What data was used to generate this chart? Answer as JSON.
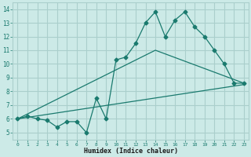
{
  "xlabel": "Humidex (Indice chaleur)",
  "bg_color": "#cceae7",
  "grid_color": "#aacfcc",
  "line_color": "#1a7a6e",
  "line1_x": [
    0,
    1,
    2,
    3,
    4,
    5,
    6,
    7,
    8,
    9,
    10,
    11,
    12,
    13,
    14,
    15,
    16,
    17,
    18,
    19,
    20,
    21,
    22,
    23
  ],
  "line1_y": [
    6.0,
    6.2,
    6.0,
    5.9,
    5.4,
    5.8,
    5.8,
    5.0,
    7.5,
    6.0,
    10.3,
    10.5,
    11.5,
    13.0,
    13.8,
    12.0,
    13.2,
    13.8,
    12.7,
    12.0,
    11.0,
    10.0,
    8.6,
    8.6
  ],
  "line2_x": [
    0,
    23
  ],
  "line2_y": [
    6.0,
    8.5
  ],
  "line3_x": [
    0,
    14,
    23
  ],
  "line3_y": [
    6.0,
    11.0,
    8.6
  ],
  "xlim": [
    -0.5,
    23.5
  ],
  "ylim": [
    4.5,
    14.5
  ],
  "xticks": [
    0,
    1,
    2,
    3,
    4,
    5,
    6,
    7,
    8,
    9,
    10,
    11,
    12,
    13,
    14,
    15,
    16,
    17,
    18,
    19,
    20,
    21,
    22,
    23
  ],
  "yticks": [
    5,
    6,
    7,
    8,
    9,
    10,
    11,
    12,
    13,
    14
  ]
}
